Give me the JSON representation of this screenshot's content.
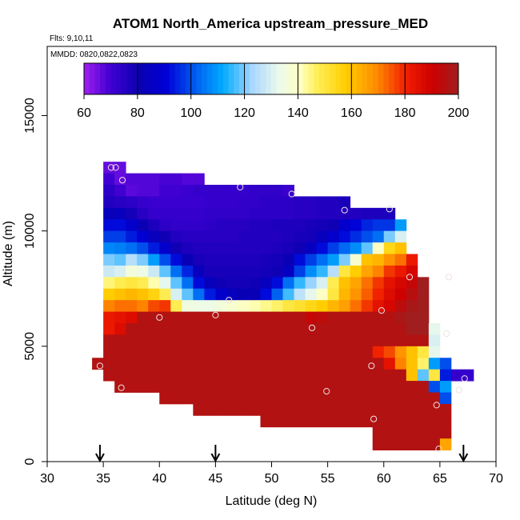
{
  "chart_data": {
    "type": "heatmap",
    "title": "ATOM1 North_America upstream_pressure_MED",
    "flights_label": "Flts: 9,10,11",
    "dates_label": "MMDD: 0820,0822,0823",
    "xlabel": "Latitude (deg N)",
    "ylabel": "Altitude (m)",
    "xlim": [
      30,
      70
    ],
    "ylim": [
      0,
      18000
    ],
    "x_ticks": [
      "30",
      "35",
      "40",
      "45",
      "50",
      "55",
      "60",
      "65",
      "70"
    ],
    "y_ticks": [
      "0",
      "5000",
      "10000",
      "15000"
    ],
    "colorbar": {
      "min": 60,
      "max": 200,
      "ticks": [
        "60",
        "80",
        "100",
        "120",
        "140",
        "160",
        "180",
        "200"
      ]
    },
    "bin_size": {
      "lat": 1,
      "alt": 500
    },
    "grid": {
      "row_altitudes_m": [
        12750,
        12250,
        11750,
        11250,
        10750,
        10250,
        9750,
        9250,
        8750,
        8250,
        7750,
        7250,
        6750,
        6250,
        5750,
        5250,
        4750,
        4250,
        3750,
        3250,
        2750,
        2250,
        1750,
        1250,
        750
      ],
      "rows": [
        {
          "start_lat": 35.5,
          "values": [
            66,
            66
          ]
        },
        {
          "start_lat": 35.5,
          "values": [
            70,
            66,
            68,
            68,
            68,
            69,
            69,
            68,
            68
          ]
        },
        {
          "start_lat": 35.5,
          "values": [
            74,
            70,
            67,
            68,
            68,
            70,
            70,
            71,
            72,
            72,
            72,
            72,
            72,
            73,
            73,
            73,
            71
          ]
        },
        {
          "start_lat": 35.5,
          "values": [
            76,
            75,
            74,
            72,
            71,
            71,
            71,
            71,
            71,
            72,
            72,
            72,
            73,
            73,
            74,
            74,
            74,
            75,
            75,
            76,
            76,
            78
          ]
        },
        {
          "start_lat": 35.5,
          "values": [
            83,
            84,
            79,
            75,
            72,
            72,
            72,
            72,
            72,
            73,
            73,
            73,
            73,
            74,
            74,
            74,
            74,
            75,
            75,
            76,
            76,
            76,
            76,
            77,
            77,
            77
          ]
        },
        {
          "start_lat": 35.5,
          "values": [
            92,
            92,
            88,
            82,
            77,
            74,
            73,
            73,
            73,
            74,
            75,
            75,
            75,
            76,
            76,
            77,
            77,
            77,
            78,
            79,
            80,
            88,
            91,
            95,
            97,
            97,
            110
          ]
        },
        {
          "start_lat": 35.5,
          "values": [
            98,
            98,
            94,
            90,
            84,
            80,
            76,
            75,
            75,
            75,
            75,
            75,
            76,
            76,
            76,
            76,
            77,
            78,
            79,
            84,
            88,
            92,
            96,
            100,
            104,
            120,
            130
          ]
        },
        {
          "start_lat": 35.5,
          "values": [
            107,
            106,
            104,
            100,
            94,
            88,
            80,
            77,
            76,
            76,
            76,
            76,
            76,
            76,
            76,
            77,
            78,
            80,
            85,
            92,
            98,
            103,
            108,
            118,
            140,
            155,
            160
          ]
        },
        {
          "start_lat": 35.5,
          "values": [
            120,
            118,
            125,
            120,
            110,
            100,
            92,
            82,
            78,
            77,
            77,
            77,
            77,
            77,
            78,
            79,
            82,
            92,
            98,
            104,
            110,
            120,
            138,
            160,
            162,
            168,
            172,
            182
          ]
        },
        {
          "start_lat": 35.5,
          "values": [
            128,
            130,
            136,
            134,
            128,
            118,
            104,
            95,
            84,
            78,
            78,
            78,
            78,
            78,
            79,
            80,
            85,
            98,
            108,
            115,
            125,
            150,
            158,
            165,
            170,
            178,
            182,
            188
          ]
        },
        {
          "start_lat": 35.5,
          "values": [
            145,
            148,
            150,
            148,
            142,
            132,
            118,
            104,
            92,
            84,
            80,
            79,
            79,
            80,
            84,
            92,
            104,
            115,
            122,
            130,
            148,
            160,
            165,
            172,
            178,
            184,
            188,
            192,
            200
          ]
        },
        {
          "start_lat": 35.5,
          "values": [
            158,
            160,
            162,
            160,
            156,
            148,
            130,
            118,
            104,
            94,
            88,
            84,
            82,
            82,
            92,
            102,
            116,
            126,
            132,
            140,
            150,
            162,
            168,
            174,
            180,
            186,
            190,
            195,
            200
          ]
        },
        {
          "start_lat": 35.5,
          "values": [
            170,
            172,
            172,
            170,
            176,
            178,
            148,
            135,
            134,
            134,
            136,
            138,
            140,
            142,
            144,
            146,
            150,
            152,
            155,
            158,
            162,
            166,
            172,
            178,
            184,
            188,
            194,
            198,
            200
          ]
        },
        {
          "start_lat": 35.5,
          "values": [
            182,
            184,
            186,
            196,
            196,
            196,
            196,
            196,
            196,
            196,
            196,
            196,
            196,
            196,
            196,
            196,
            196,
            196,
            192,
            194,
            196,
            196,
            196,
            196,
            196,
            196,
            198,
            200,
            200
          ]
        },
        {
          "start_lat": 35.5,
          "values": [
            182,
            186,
            196,
            196,
            196,
            196,
            196,
            196,
            196,
            196,
            196,
            196,
            196,
            196,
            196,
            196,
            196,
            196,
            196,
            196,
            196,
            196,
            196,
            196,
            196,
            196,
            196,
            200,
            200,
            132
          ]
        },
        {
          "start_lat": 35.5,
          "values": [
            196,
            196,
            196,
            196,
            196,
            196,
            196,
            196,
            196,
            196,
            196,
            196,
            196,
            196,
            196,
            196,
            196,
            196,
            196,
            196,
            196,
            196,
            196,
            196,
            196,
            196,
            196,
            196,
            196,
            130
          ]
        },
        {
          "start_lat": 35.5,
          "values": [
            196,
            196,
            196,
            196,
            196,
            196,
            196,
            196,
            196,
            196,
            196,
            196,
            196,
            196,
            196,
            196,
            196,
            196,
            196,
            196,
            196,
            196,
            196,
            196,
            180,
            176,
            168,
            160,
            150,
            132
          ]
        },
        {
          "start_lat": 34.5,
          "values": [
            196,
            196,
            196,
            196,
            196,
            196,
            196,
            196,
            196,
            196,
            196,
            196,
            196,
            196,
            196,
            196,
            196,
            196,
            196,
            196,
            196,
            196,
            196,
            196,
            196,
            196,
            184,
            170,
            160,
            146,
            110,
            100
          ]
        },
        {
          "start_lat": 35.5,
          "values": [
            196,
            196,
            196,
            196,
            196,
            196,
            196,
            196,
            196,
            196,
            196,
            196,
            196,
            196,
            196,
            196,
            196,
            196,
            196,
            196,
            196,
            196,
            196,
            196,
            196,
            196,
            196,
            160,
            118,
            150,
            94,
            72,
            72
          ]
        },
        {
          "start_lat": 36.5,
          "values": [
            196,
            196,
            196,
            196,
            196,
            196,
            196,
            196,
            196,
            196,
            196,
            196,
            196,
            196,
            196,
            196,
            196,
            196,
            196,
            196,
            196,
            196,
            196,
            196,
            196,
            196,
            196,
            196,
            100,
            110
          ]
        },
        {
          "start_lat": 40.5,
          "values": [
            196,
            196,
            196,
            196,
            196,
            196,
            196,
            196,
            196,
            196,
            196,
            196,
            196,
            196,
            196,
            196,
            196,
            196,
            196,
            196,
            196,
            196,
            196,
            196,
            196,
            100
          ]
        },
        {
          "start_lat": 43.5,
          "values": [
            196,
            196,
            196,
            196,
            196,
            196,
            196,
            196,
            196,
            196,
            196,
            196,
            196,
            196,
            196,
            196,
            196,
            196,
            196,
            196,
            196,
            196,
            196
          ]
        },
        {
          "start_lat": 49.5,
          "values": [
            196,
            196,
            196,
            196,
            196,
            196,
            196,
            196,
            196,
            196,
            196,
            196,
            196,
            196,
            196,
            196,
            196
          ]
        },
        {
          "start_lat": 59.5,
          "values": [
            196,
            196,
            196,
            196,
            196,
            196,
            196
          ]
        },
        {
          "start_lat": 59.5,
          "values": [
            196,
            196,
            196,
            196,
            196,
            196,
            165
          ]
        }
      ]
    },
    "sample_points": [
      {
        "lat": 35.7,
        "alt": 12750
      },
      {
        "lat": 36.1,
        "alt": 12750
      },
      {
        "lat": 36.7,
        "alt": 12200
      },
      {
        "lat": 47.2,
        "alt": 11900
      },
      {
        "lat": 51.8,
        "alt": 11600
      },
      {
        "lat": 56.5,
        "alt": 10900
      },
      {
        "lat": 60.5,
        "alt": 10950
      },
      {
        "lat": 62.3,
        "alt": 8000
      },
      {
        "lat": 65.8,
        "alt": 8000
      },
      {
        "lat": 46.2,
        "alt": 7000
      },
      {
        "lat": 59.8,
        "alt": 6550
      },
      {
        "lat": 40.0,
        "alt": 6250
      },
      {
        "lat": 45.0,
        "alt": 6350
      },
      {
        "lat": 53.6,
        "alt": 5800
      },
      {
        "lat": 65.6,
        "alt": 5550
      },
      {
        "lat": 34.7,
        "alt": 4150
      },
      {
        "lat": 58.9,
        "alt": 4150
      },
      {
        "lat": 67.2,
        "alt": 3600
      },
      {
        "lat": 36.6,
        "alt": 3200
      },
      {
        "lat": 66.7,
        "alt": 3100
      },
      {
        "lat": 54.9,
        "alt": 3050
      },
      {
        "lat": 64.7,
        "alt": 2450
      },
      {
        "lat": 59.1,
        "alt": 1850
      },
      {
        "lat": 64.9,
        "alt": 550
      }
    ],
    "flight_start_markers_lat": [
      34.7,
      45.0,
      67.1
    ]
  }
}
